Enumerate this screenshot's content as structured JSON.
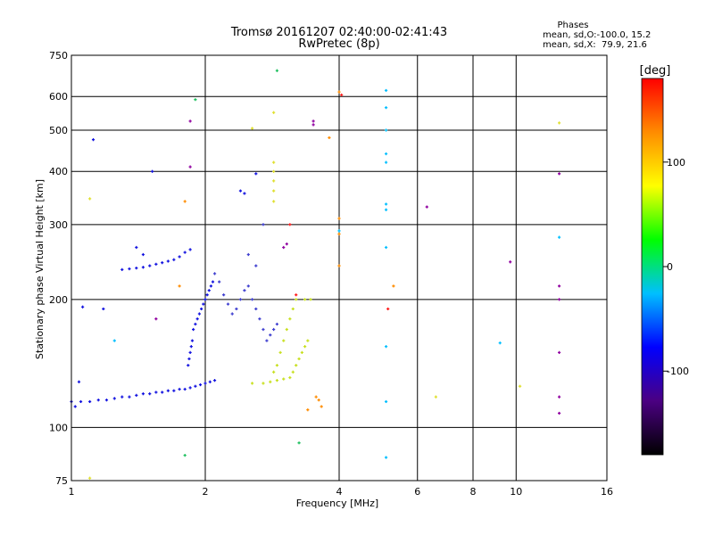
{
  "chart_data": {
    "type": "scatter",
    "title": "Tromsø 20161207 02:40:00-02:41:43",
    "subtitle": "RwPretec (8p)",
    "xlabel": "Frequency [MHz]",
    "ylabel": "Stationary phase Virtual Height [km]",
    "x_scale": "log",
    "y_scale": "log",
    "xlim": [
      1,
      16
    ],
    "ylim": [
      75,
      750
    ],
    "x_ticks": [
      1,
      2,
      4,
      6,
      8,
      10,
      16
    ],
    "y_ticks": [
      75,
      100,
      200,
      300,
      400,
      500,
      600,
      750
    ],
    "grid": true,
    "stats": {
      "heading": "Phases",
      "line_o": "mean, sd,O:-100.0, 15.2",
      "line_x": "mean, sd,X:  79.9, 21.6"
    },
    "colorbar": {
      "label": "[deg]",
      "range": [
        -180,
        180
      ],
      "ticks": [
        -100,
        0,
        100
      ],
      "colors": [
        "#000000",
        "#4b0082",
        "#0000ff",
        "#00bfff",
        "#00ff00",
        "#ffff00",
        "#ff8c00",
        "#ff0000"
      ]
    },
    "series": [
      {
        "color": "#1515e0",
        "points": [
          [
            1.0,
            115
          ],
          [
            1.05,
            115
          ],
          [
            1.1,
            115
          ],
          [
            1.15,
            116
          ],
          [
            1.2,
            116
          ],
          [
            1.25,
            117
          ],
          [
            1.3,
            118
          ],
          [
            1.35,
            118
          ],
          [
            1.4,
            119
          ],
          [
            1.45,
            120
          ],
          [
            1.5,
            120
          ],
          [
            1.55,
            121
          ],
          [
            1.6,
            121
          ],
          [
            1.65,
            122
          ],
          [
            1.7,
            122
          ],
          [
            1.75,
            123
          ],
          [
            1.8,
            123
          ],
          [
            1.85,
            124
          ],
          [
            1.9,
            125
          ],
          [
            1.95,
            126
          ],
          [
            2.0,
            127
          ],
          [
            2.05,
            128
          ],
          [
            2.1,
            129
          ],
          [
            1.83,
            140
          ],
          [
            1.84,
            145
          ],
          [
            1.85,
            150
          ],
          [
            1.86,
            155
          ],
          [
            1.87,
            160
          ],
          [
            1.88,
            170
          ],
          [
            1.9,
            175
          ],
          [
            1.92,
            180
          ],
          [
            1.94,
            185
          ],
          [
            1.96,
            190
          ],
          [
            1.98,
            195
          ],
          [
            2.0,
            200
          ],
          [
            2.02,
            205
          ],
          [
            2.04,
            210
          ],
          [
            2.06,
            215
          ],
          [
            2.08,
            220
          ],
          [
            1.3,
            235
          ],
          [
            1.35,
            236
          ],
          [
            1.4,
            237
          ],
          [
            1.45,
            238
          ],
          [
            1.5,
            240
          ],
          [
            1.55,
            242
          ],
          [
            1.6,
            244
          ],
          [
            1.65,
            246
          ],
          [
            1.7,
            248
          ],
          [
            1.75,
            252
          ],
          [
            1.8,
            258
          ],
          [
            1.85,
            262
          ],
          [
            1.4,
            265
          ],
          [
            1.45,
            255
          ],
          [
            1.02,
            112
          ],
          [
            1.04,
            128
          ],
          [
            1.06,
            192
          ],
          [
            1.18,
            190
          ],
          [
            2.4,
            360
          ],
          [
            2.45,
            355
          ],
          [
            2.6,
            395
          ],
          [
            1.12,
            475
          ],
          [
            1.52,
            400
          ]
        ]
      },
      {
        "color": "#4040d0",
        "points": [
          [
            2.1,
            230
          ],
          [
            2.15,
            220
          ],
          [
            2.2,
            205
          ],
          [
            2.25,
            195
          ],
          [
            2.3,
            185
          ],
          [
            2.35,
            190
          ],
          [
            2.4,
            200
          ],
          [
            2.45,
            210
          ],
          [
            2.5,
            215
          ],
          [
            2.55,
            200
          ],
          [
            2.6,
            190
          ],
          [
            2.65,
            180
          ],
          [
            2.7,
            170
          ],
          [
            2.75,
            160
          ],
          [
            2.8,
            165
          ],
          [
            2.85,
            170
          ],
          [
            2.9,
            175
          ],
          [
            2.6,
            240
          ],
          [
            2.5,
            255
          ],
          [
            2.7,
            300
          ]
        ]
      },
      {
        "color": "#c8e020",
        "points": [
          [
            2.55,
            127
          ],
          [
            2.7,
            127
          ],
          [
            2.8,
            128
          ],
          [
            2.9,
            129
          ],
          [
            3.0,
            130
          ],
          [
            3.1,
            131
          ],
          [
            3.15,
            135
          ],
          [
            3.2,
            140
          ],
          [
            3.25,
            145
          ],
          [
            3.3,
            150
          ],
          [
            3.35,
            155
          ],
          [
            3.4,
            160
          ],
          [
            2.95,
            150
          ],
          [
            3.0,
            160
          ],
          [
            3.05,
            170
          ],
          [
            3.1,
            180
          ],
          [
            3.15,
            190
          ],
          [
            3.2,
            200
          ],
          [
            3.35,
            200
          ],
          [
            3.45,
            200
          ],
          [
            2.9,
            140
          ],
          [
            2.85,
            135
          ]
        ]
      },
      {
        "color": "#00bfff",
        "points": [
          [
            5.1,
            620
          ],
          [
            5.1,
            565
          ],
          [
            5.1,
            500
          ],
          [
            5.1,
            440
          ],
          [
            5.1,
            420
          ],
          [
            5.1,
            335
          ],
          [
            5.1,
            325
          ],
          [
            5.1,
            265
          ],
          [
            5.1,
            155
          ],
          [
            5.1,
            115
          ],
          [
            5.1,
            85
          ],
          [
            12.5,
            280
          ],
          [
            9.2,
            158
          ],
          [
            1.25,
            160
          ],
          [
            4.0,
            290
          ]
        ]
      },
      {
        "color": "#ff8c00",
        "points": [
          [
            4.0,
            615
          ],
          [
            4.0,
            310
          ],
          [
            4.0,
            285
          ],
          [
            4.0,
            240
          ],
          [
            5.3,
            215
          ],
          [
            3.8,
            480
          ],
          [
            1.8,
            340
          ],
          [
            1.75,
            215
          ],
          [
            3.55,
            118
          ],
          [
            3.4,
            110
          ],
          [
            3.6,
            116
          ],
          [
            3.65,
            112
          ]
        ]
      },
      {
        "color": "#e0e030",
        "points": [
          [
            2.85,
            550
          ],
          [
            2.85,
            420
          ],
          [
            2.85,
            400
          ],
          [
            2.85,
            380
          ],
          [
            2.85,
            360
          ],
          [
            2.85,
            340
          ],
          [
            12.5,
            520
          ],
          [
            10.2,
            125
          ],
          [
            6.6,
            118
          ],
          [
            1.1,
            345
          ],
          [
            1.1,
            76
          ],
          [
            2.55,
            505
          ]
        ]
      },
      {
        "color": "#9000a0",
        "points": [
          [
            1.85,
            525
          ],
          [
            1.85,
            410
          ],
          [
            3.5,
            525
          ],
          [
            3.5,
            515
          ],
          [
            3.05,
            270
          ],
          [
            3.0,
            265
          ],
          [
            12.5,
            215
          ],
          [
            12.5,
            200
          ],
          [
            12.5,
            150
          ],
          [
            12.5,
            118
          ],
          [
            12.5,
            108
          ],
          [
            12.5,
            395
          ],
          [
            6.3,
            330
          ],
          [
            9.7,
            245
          ],
          [
            1.55,
            180
          ]
        ]
      },
      {
        "color": "#ff2020",
        "points": [
          [
            4.05,
            605
          ],
          [
            5.15,
            190
          ],
          [
            3.1,
            300
          ],
          [
            3.2,
            205
          ]
        ]
      },
      {
        "color": "#20c060",
        "points": [
          [
            1.8,
            86
          ],
          [
            3.25,
            92
          ],
          [
            1.9,
            590
          ],
          [
            2.9,
            690
          ]
        ]
      }
    ]
  }
}
